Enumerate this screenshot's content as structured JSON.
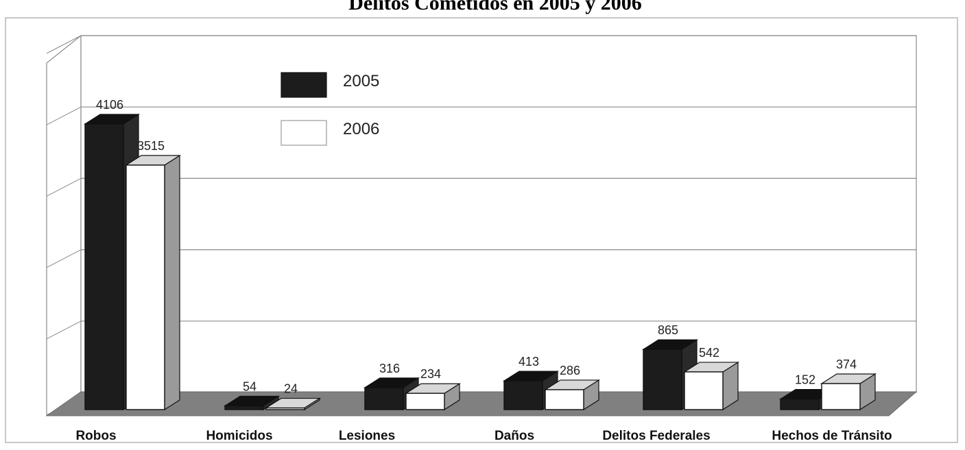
{
  "chart_data": {
    "type": "bar",
    "title": "Delitos Cometidos en 2005 y 2006",
    "categories": [
      "Robos",
      "Homicidos",
      "Lesiones",
      "Daños",
      "Delitos Federales",
      "Hechos de Tránsito"
    ],
    "category_labels": [
      "Robos",
      "Homicidos",
      "Lesiones",
      "Daños",
      "Delitos Federales",
      "Hechos  de Tránsito"
    ],
    "series": [
      {
        "name": "2005",
        "values": [
          4106,
          54,
          316,
          413,
          865,
          152
        ],
        "color": "#1c1c1c"
      },
      {
        "name": "2006",
        "values": [
          3515,
          24,
          234,
          286,
          542,
          374
        ],
        "color": "#ffffff"
      }
    ],
    "value_labels": [
      [
        "4106",
        "54",
        "316",
        "413",
        "865",
        "152"
      ],
      [
        "3515",
        "24",
        "234",
        "286",
        "542",
        "374"
      ]
    ],
    "ylim": [
      0,
      5000
    ],
    "grid": true,
    "legend": "top-left",
    "style": "3d"
  }
}
